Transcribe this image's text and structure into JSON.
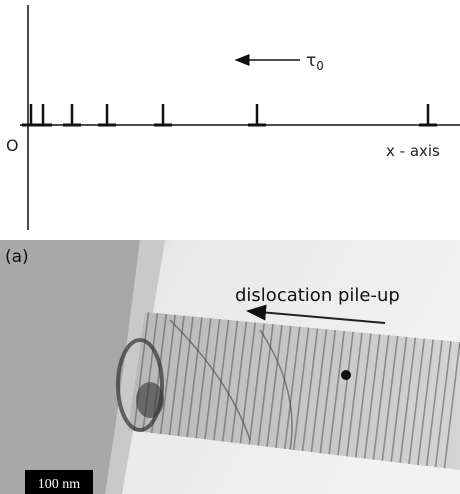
{
  "schematic": {
    "stress_symbol": "τ",
    "stress_subscript": "0",
    "origin_label": "O",
    "axis_label": "x - axis"
  },
  "micrograph": {
    "panel_label": "(a)",
    "annotation": "dislocation pile-up",
    "scale_bar": "100 nm"
  }
}
